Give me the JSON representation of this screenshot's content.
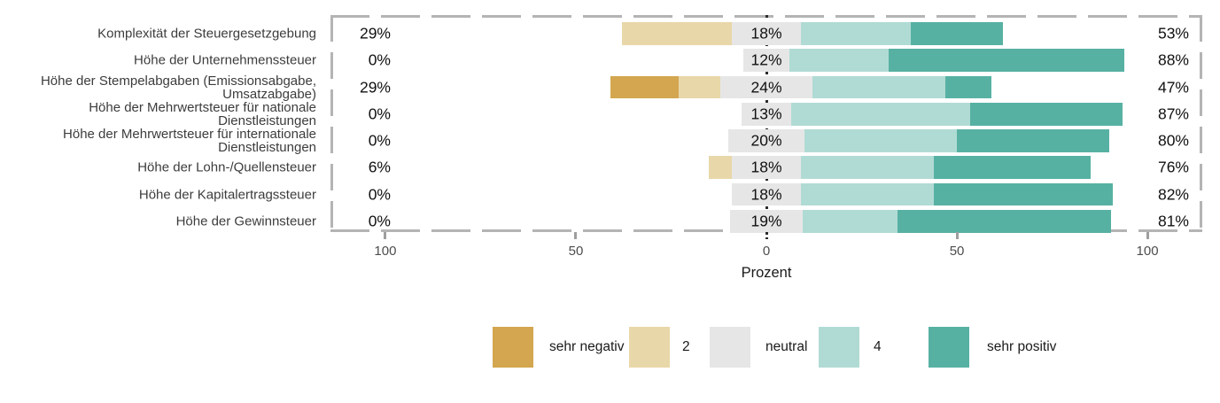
{
  "chart_data": {
    "type": "bar",
    "variant": "diverging-stacked-likert",
    "title": "",
    "xlabel": "Prozent",
    "x_tick_values": [
      -100,
      -50,
      0,
      50,
      100
    ],
    "x_tick_labels": [
      "100",
      "50",
      "0",
      "50",
      "100"
    ],
    "axis_limit_pct": 114.4,
    "neutral_split_across_zero": true,
    "grid": "off",
    "legend_position": "bottom",
    "levels": [
      "sehr negativ",
      "2",
      "neutral",
      "4",
      "sehr positiv"
    ],
    "colors": {
      "sehr negativ": "#d3a64f",
      "2": "#e8d7a9",
      "neutral": "#e6e6e6",
      "4": "#b0dbd4",
      "sehr positiv": "#57b1a3",
      "panel_border": "#b4b4b4",
      "zero_line": "#2b2b2b"
    },
    "legend": [
      {
        "label": "sehr negativ",
        "color": "#d3a64f"
      },
      {
        "label": "2",
        "color": "#e8d7a9"
      },
      {
        "label": "neutral",
        "color": "#e6e6e6"
      },
      {
        "label": "4",
        "color": "#b0dbd4"
      },
      {
        "label": "sehr positiv",
        "color": "#57b1a3"
      }
    ],
    "rows": [
      {
        "category": "Komplexität der Steuergesetzgebung",
        "negative_label": "29%",
        "neutral_label": "18%",
        "positive_label": "53%",
        "values": {
          "sehr negativ": 0,
          "2": 29,
          "neutral": 18,
          "4": 29,
          "sehr positiv": 24
        }
      },
      {
        "category": "Höhe der Unternehmenssteuer",
        "negative_label": "0%",
        "neutral_label": "12%",
        "positive_label": "88%",
        "values": {
          "sehr negativ": 0,
          "2": 0,
          "neutral": 12,
          "4": 26,
          "sehr positiv": 62
        }
      },
      {
        "category": "Höhe der Stempelabgaben (Emissionsabgabe, Umsatzabgabe)",
        "negative_label": "29%",
        "neutral_label": "24%",
        "positive_label": "47%",
        "values": {
          "sehr negativ": 18,
          "2": 11,
          "neutral": 24,
          "4": 35,
          "sehr positiv": 12
        }
      },
      {
        "category": "Höhe der Mehrwertsteuer für nationale Dienstleistungen",
        "negative_label": "0%",
        "neutral_label": "13%",
        "positive_label": "87%",
        "values": {
          "sehr negativ": 0,
          "2": 0,
          "neutral": 13,
          "4": 47,
          "sehr positiv": 40
        }
      },
      {
        "category": "Höhe der Mehrwertsteuer für internationale Dienstleistungen",
        "negative_label": "0%",
        "neutral_label": "20%",
        "positive_label": "80%",
        "values": {
          "sehr negativ": 0,
          "2": 0,
          "neutral": 20,
          "4": 40,
          "sehr positiv": 40
        }
      },
      {
        "category": "Höhe der Lohn-/Quellensteuer",
        "negative_label": "6%",
        "neutral_label": "18%",
        "positive_label": "76%",
        "values": {
          "sehr negativ": 0,
          "2": 6,
          "neutral": 18,
          "4": 35,
          "sehr positiv": 41
        }
      },
      {
        "category": "Höhe der Kapitalertragssteuer",
        "negative_label": "0%",
        "neutral_label": "18%",
        "positive_label": "82%",
        "values": {
          "sehr negativ": 0,
          "2": 0,
          "neutral": 18,
          "4": 35,
          "sehr positiv": 47
        }
      },
      {
        "category": "Höhe der Gewinnsteuer",
        "negative_label": "0%",
        "neutral_label": "19%",
        "positive_label": "81%",
        "values": {
          "sehr negativ": 0,
          "2": 0,
          "neutral": 19,
          "4": 25,
          "sehr positiv": 56
        }
      }
    ]
  }
}
